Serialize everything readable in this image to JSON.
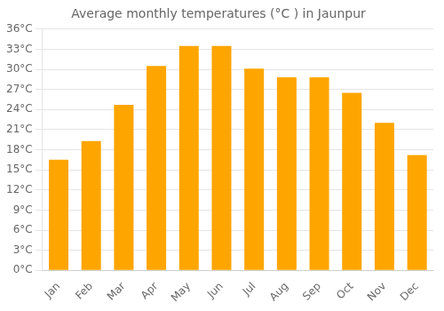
{
  "chart_data": {
    "type": "bar",
    "title": "Average monthly temperatures (°C ) in Jaunpur",
    "categories": [
      "Jan",
      "Feb",
      "Mar",
      "Apr",
      "May",
      "Jun",
      "Jul",
      "Aug",
      "Sep",
      "Oct",
      "Nov",
      "Dec"
    ],
    "values": [
      16.5,
      19.3,
      24.7,
      30.5,
      33.5,
      33.5,
      30.1,
      28.8,
      28.8,
      26.5,
      22.0,
      17.2
    ],
    "color": "#FFA500",
    "ylim": [
      0,
      36
    ],
    "yticks": [
      {
        "value": 0,
        "label": "0°C"
      },
      {
        "value": 3,
        "label": "3°C"
      },
      {
        "value": 6,
        "label": "6°C"
      },
      {
        "value": 9,
        "label": "9°C"
      },
      {
        "value": 12,
        "label": "12°C"
      },
      {
        "value": 15,
        "label": "15°C"
      },
      {
        "value": 18,
        "label": "18°C"
      },
      {
        "value": 21,
        "label": "21°C"
      },
      {
        "value": 24,
        "label": "24°C"
      },
      {
        "value": 27,
        "label": "27°C"
      },
      {
        "value": 30,
        "label": "30°C"
      },
      {
        "value": 33,
        "label": "33°C"
      },
      {
        "value": 36,
        "label": "36°C"
      }
    ],
    "grid": true
  }
}
